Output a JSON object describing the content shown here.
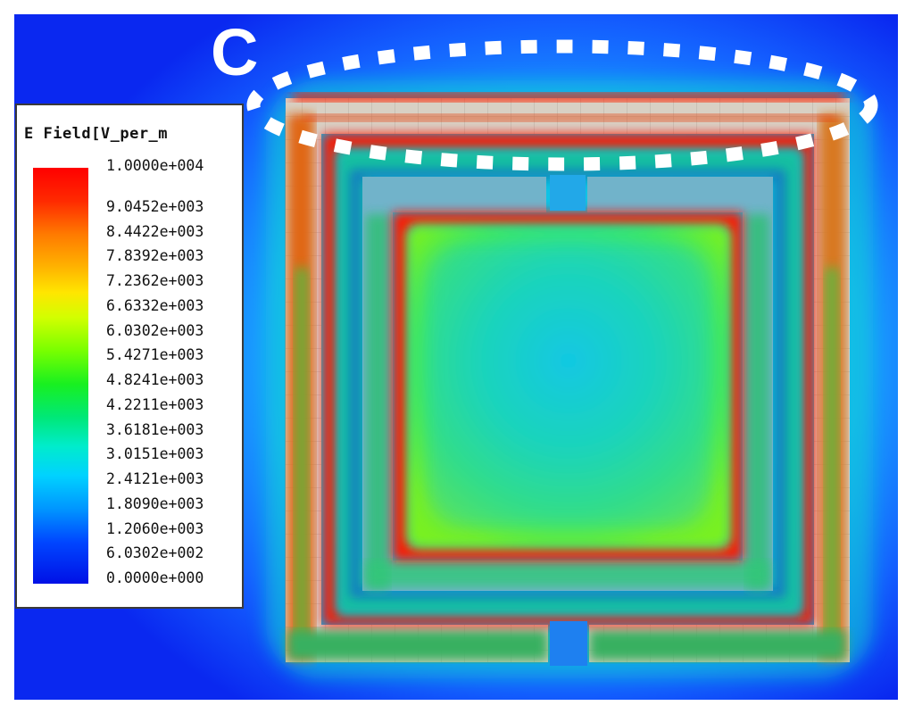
{
  "figure": {
    "panel_label": "C",
    "legend": {
      "title": "E Field[V_per_m",
      "ticks": [
        "1.0000e+004",
        "9.0452e+003",
        "8.4422e+003",
        "7.8392e+003",
        "7.2362e+003",
        "6.6332e+003",
        "6.0302e+003",
        "5.4271e+003",
        "4.8241e+003",
        "4.2211e+003",
        "3.6181e+003",
        "3.0151e+003",
        "2.4121e+003",
        "1.8090e+003",
        "1.2060e+003",
        "6.0302e+002",
        "0.0000e+000"
      ]
    },
    "colors": {
      "background": "#0a28ff",
      "high": "#ff0000",
      "mid": "#28e050",
      "low": "#0010e6",
      "metal": "#d8d0c4",
      "highlight": "#ffffff"
    }
  }
}
